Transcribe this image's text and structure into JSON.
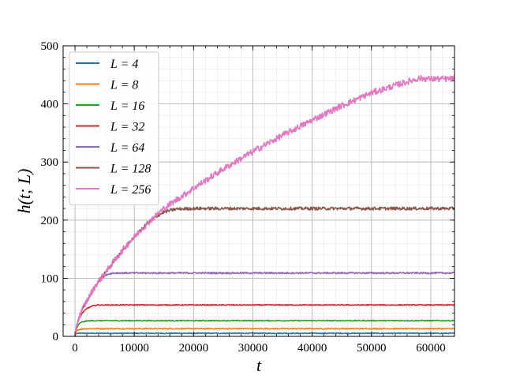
{
  "chart_data": {
    "type": "line",
    "title": "",
    "xlabel": "t",
    "ylabel": "h(t; L)",
    "xlim": [
      -2000,
      64000
    ],
    "ylim": [
      0,
      500
    ],
    "xticks": [
      0,
      10000,
      20000,
      30000,
      40000,
      50000,
      60000
    ],
    "xtick_labels": [
      "0",
      "10000",
      "20000",
      "30000",
      "40000",
      "50000",
      "60000"
    ],
    "yticks": [
      0,
      100,
      200,
      300,
      400,
      500
    ],
    "ytick_labels": [
      "0",
      "100",
      "200",
      "300",
      "400",
      "500"
    ],
    "grid": true,
    "minor_grid": true,
    "legend_position": "top-left",
    "series": [
      {
        "name": "L = 4",
        "color": "#1f77b4",
        "points": [
          [
            0,
            0
          ],
          [
            100,
            4.5
          ],
          [
            300,
            5.0
          ],
          [
            1000,
            5.3
          ],
          [
            64000,
            5.3
          ]
        ]
      },
      {
        "name": "L = 8",
        "color": "#ff7f0e",
        "points": [
          [
            0,
            0
          ],
          [
            150,
            8
          ],
          [
            500,
            11
          ],
          [
            1000,
            12.5
          ],
          [
            2000,
            13.2
          ],
          [
            64000,
            13.2
          ]
        ]
      },
      {
        "name": "L = 16",
        "color": "#2ca02c",
        "points": [
          [
            0,
            0
          ],
          [
            200,
            12
          ],
          [
            500,
            19
          ],
          [
            1000,
            24
          ],
          [
            2000,
            26.5
          ],
          [
            3000,
            27
          ],
          [
            64000,
            27
          ]
        ]
      },
      {
        "name": "L = 32",
        "color": "#d62728",
        "points": [
          [
            0,
            0
          ],
          [
            250,
            16
          ],
          [
            600,
            28
          ],
          [
            1200,
            40
          ],
          [
            2000,
            48
          ],
          [
            3000,
            52.5
          ],
          [
            4000,
            54
          ],
          [
            64000,
            54
          ]
        ]
      },
      {
        "name": "L = 64",
        "color": "#9467bd",
        "points": [
          [
            0,
            0
          ],
          [
            300,
            20
          ],
          [
            700,
            33
          ],
          [
            1500,
            52
          ],
          [
            2500,
            70
          ],
          [
            3500,
            88
          ],
          [
            4500,
            100
          ],
          [
            5500,
            107
          ],
          [
            6500,
            109
          ],
          [
            64000,
            109
          ]
        ]
      },
      {
        "name": "L = 128",
        "color": "#8c564b",
        "points": [
          [
            0,
            0
          ],
          [
            300,
            20
          ],
          [
            700,
            33
          ],
          [
            1500,
            52
          ],
          [
            2500,
            70
          ],
          [
            3500,
            88
          ],
          [
            5000,
            108
          ],
          [
            7000,
            135
          ],
          [
            9000,
            160
          ],
          [
            11000,
            182
          ],
          [
            13000,
            202
          ],
          [
            15000,
            214
          ],
          [
            17000,
            219
          ],
          [
            20000,
            220
          ],
          [
            64000,
            220
          ]
        ]
      },
      {
        "name": "L = 256",
        "color": "#e377c2",
        "points": [
          [
            0,
            0
          ],
          [
            300,
            20
          ],
          [
            700,
            33
          ],
          [
            1500,
            52
          ],
          [
            2500,
            70
          ],
          [
            3500,
            88
          ],
          [
            5000,
            108
          ],
          [
            7000,
            135
          ],
          [
            9000,
            160
          ],
          [
            11000,
            182
          ],
          [
            13000,
            202
          ],
          [
            15000,
            220
          ],
          [
            20000,
            255
          ],
          [
            25000,
            288
          ],
          [
            30000,
            318
          ],
          [
            35000,
            346
          ],
          [
            40000,
            372
          ],
          [
            45000,
            397
          ],
          [
            50000,
            419
          ],
          [
            55000,
            435
          ],
          [
            58000,
            444
          ],
          [
            60000,
            443
          ],
          [
            64000,
            443
          ]
        ]
      }
    ]
  }
}
